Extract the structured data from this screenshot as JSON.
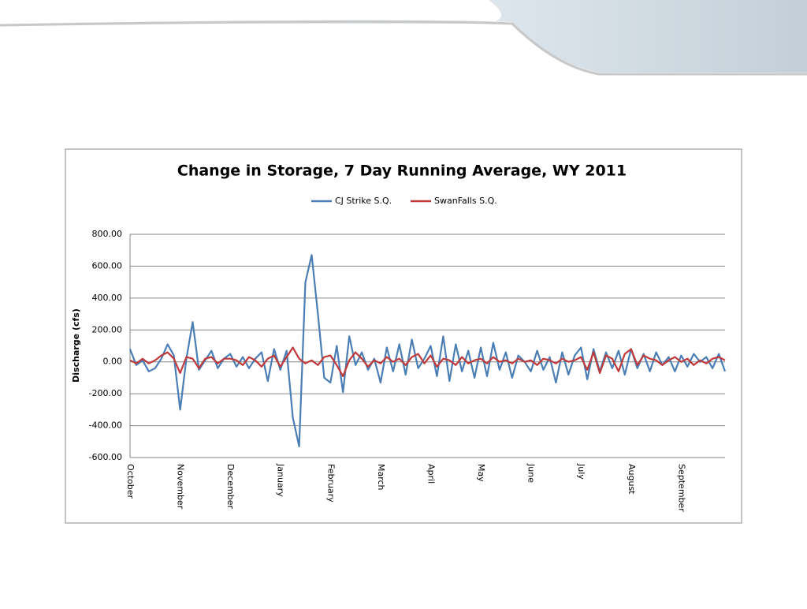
{
  "chart_data": {
    "type": "line",
    "title": "Change in Storage, 7 Day Running Average, WY 2011",
    "y_label": "Discharge (cfs)",
    "categories": [
      "October",
      null,
      null,
      null,
      null,
      null,
      null,
      null,
      "November",
      null,
      null,
      null,
      null,
      null,
      null,
      null,
      "December",
      null,
      null,
      null,
      null,
      null,
      null,
      null,
      "January",
      null,
      null,
      null,
      null,
      null,
      null,
      null,
      "February",
      null,
      null,
      null,
      null,
      null,
      null,
      null,
      "March",
      null,
      null,
      null,
      null,
      null,
      null,
      null,
      "April",
      null,
      null,
      null,
      null,
      null,
      null,
      null,
      "May",
      null,
      null,
      null,
      null,
      null,
      null,
      null,
      "June",
      null,
      null,
      null,
      null,
      null,
      null,
      null,
      "July",
      null,
      null,
      null,
      null,
      null,
      null,
      null,
      "August",
      null,
      null,
      null,
      null,
      null,
      null,
      null,
      "September",
      null,
      null,
      null,
      null,
      null,
      null,
      null
    ],
    "series": [
      {
        "name": "CJ Strike S.Q.",
        "color": "#4a7eb5",
        "values": [
          80,
          -20,
          10,
          -60,
          -40,
          20,
          110,
          40,
          -300,
          20,
          250,
          -50,
          10,
          70,
          -40,
          20,
          50,
          -30,
          30,
          -40,
          20,
          60,
          -120,
          80,
          -50,
          70,
          -350,
          -530,
          500,
          670,
          300,
          -100,
          -130,
          100,
          -190,
          160,
          -20,
          60,
          -50,
          20,
          -130,
          90,
          -60,
          110,
          -80,
          140,
          -40,
          20,
          100,
          -90,
          160,
          -120,
          110,
          -60,
          70,
          -100,
          90,
          -90,
          120,
          -50,
          60,
          -100,
          40,
          0,
          -60,
          70,
          -50,
          30,
          -130,
          60,
          -80,
          40,
          90,
          -110,
          80,
          -60,
          60,
          -40,
          70,
          -80,
          80,
          -40,
          50,
          -60,
          60,
          -20,
          30,
          -60,
          40,
          -30,
          50,
          0,
          30,
          -40,
          50,
          -60
        ]
      },
      {
        "name": "SwanFalls S.Q.",
        "color": "#c0393b",
        "values": [
          10,
          -10,
          20,
          -10,
          10,
          40,
          60,
          20,
          -70,
          30,
          20,
          -40,
          20,
          30,
          -10,
          20,
          20,
          10,
          -20,
          30,
          10,
          -30,
          20,
          40,
          -30,
          30,
          90,
          20,
          -10,
          10,
          -20,
          30,
          40,
          -20,
          -90,
          10,
          60,
          20,
          -30,
          10,
          -10,
          30,
          0,
          20,
          -20,
          30,
          50,
          -10,
          40,
          -30,
          20,
          10,
          -20,
          30,
          -10,
          10,
          20,
          -10,
          30,
          0,
          10,
          -10,
          20,
          0,
          10,
          -20,
          20,
          10,
          -10,
          20,
          0,
          10,
          30,
          -50,
          60,
          -70,
          40,
          20,
          -60,
          50,
          80,
          -20,
          40,
          20,
          10,
          -20,
          10,
          30,
          0,
          20,
          -20,
          10,
          -10,
          20,
          30,
          10
        ]
      }
    ],
    "ylim": [
      -600,
      800
    ],
    "yticks": [
      {
        "value": -600,
        "label": "-600.00"
      },
      {
        "value": -400,
        "label": "-400.00"
      },
      {
        "value": -200,
        "label": "-200.00"
      },
      {
        "value": 0,
        "label": "0.00"
      },
      {
        "value": 200,
        "label": "200.00"
      },
      {
        "value": 400,
        "label": "400.00"
      },
      {
        "value": 600,
        "label": "600.00"
      },
      {
        "value": 800,
        "label": "800.00"
      }
    ],
    "grid": true,
    "legend": "top"
  }
}
